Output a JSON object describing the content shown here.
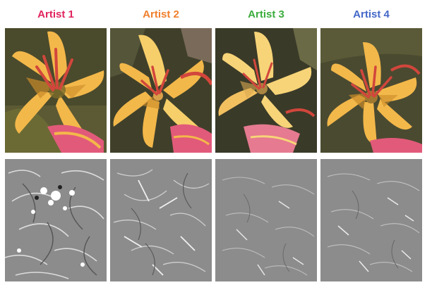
{
  "columns": [
    {
      "id": "artist-1",
      "label": "Artist 1",
      "color": "#e0245e"
    },
    {
      "id": "artist-2",
      "label": "Artist 2",
      "color": "#f07f2c"
    },
    {
      "id": "artist-3",
      "label": "Artist 3",
      "color": "#3cac3c"
    },
    {
      "id": "artist-4",
      "label": "Artist 4",
      "color": "#4468c8"
    }
  ],
  "palette": {
    "petal": "#f3b84a",
    "petal_light": "#f7cf6a",
    "petal_shadow": "#c98a2a",
    "stamen": "#d2463c",
    "pink_bud": "#e25a7a",
    "background_dark": "#4a4a2c",
    "leaf": "#6b6a34",
    "texture_base": "#8c8c8c"
  }
}
